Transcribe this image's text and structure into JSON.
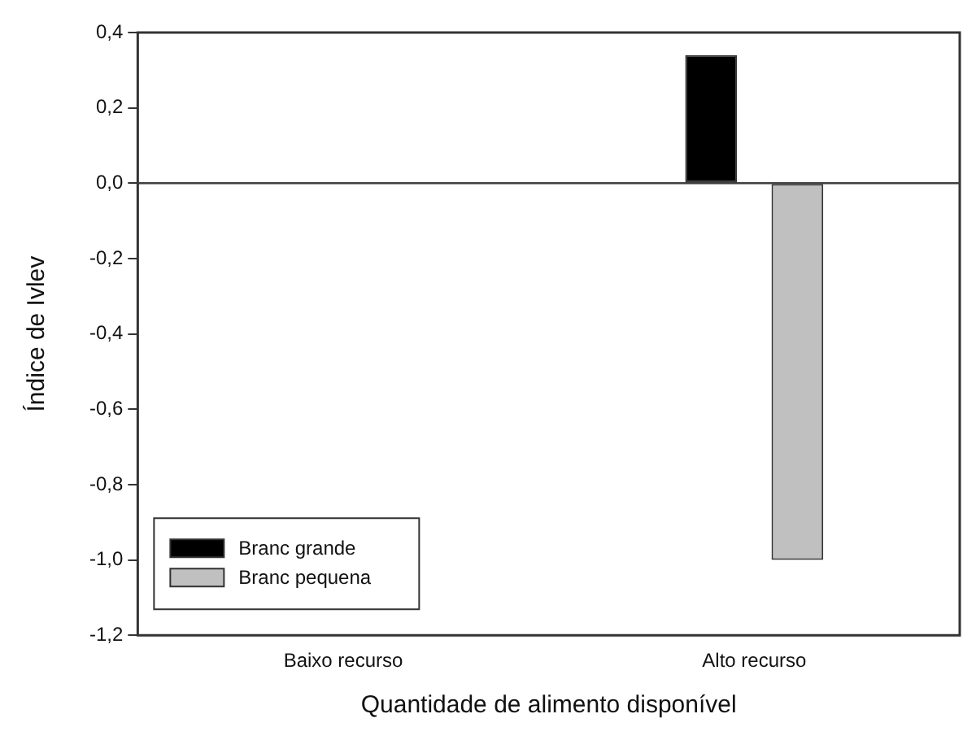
{
  "chart_data": {
    "type": "bar",
    "xlabel": "Quantidade de alimento disponível",
    "ylabel": "Índice de Ivlev",
    "categories": [
      "Baixo recurso",
      "Alto recurso"
    ],
    "series": [
      {
        "name": "Branc grande",
        "color": "#000000",
        "values": [
          null,
          0.34
        ]
      },
      {
        "name": "Branc pequena",
        "color": "#c0c0c0",
        "values": [
          null,
          -1.0
        ]
      }
    ],
    "ylim": [
      -1.2,
      0.4
    ],
    "yticks": [
      {
        "value": -1.2,
        "label": "-1,2"
      },
      {
        "value": -1.0,
        "label": "-1,0"
      },
      {
        "value": -0.8,
        "label": "-0,8"
      },
      {
        "value": -0.6,
        "label": "-0,6"
      },
      {
        "value": -0.4,
        "label": "-0,4"
      },
      {
        "value": -0.2,
        "label": "-0,2"
      },
      {
        "value": 0,
        "label": "0,0"
      },
      {
        "value": 0.2,
        "label": "0,2"
      },
      {
        "value": 0.4,
        "label": "0,4"
      }
    ],
    "ref_lines": [
      {
        "axis": "y",
        "value": 0,
        "color": "#404040"
      }
    ],
    "grid": false,
    "legend": "bottom left"
  }
}
